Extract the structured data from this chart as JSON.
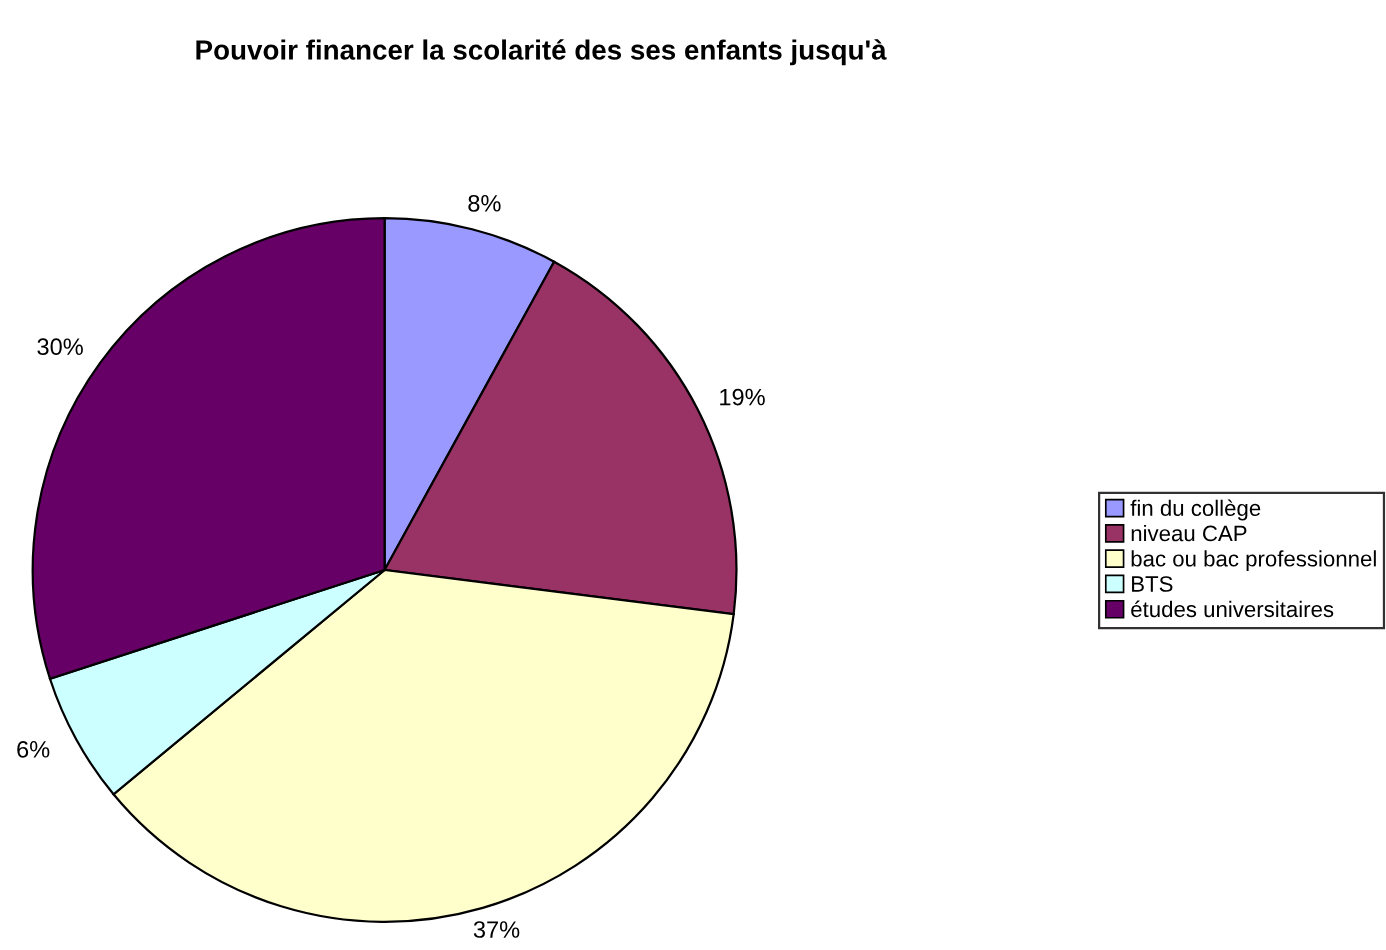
{
  "chart_data": {
    "type": "pie",
    "title": "Pouvoir financer la scolarité des ses enfants jusqu'à",
    "categories": [
      "fin du collège",
      "niveau CAP",
      "bac ou bac professionnel",
      "BTS",
      "études universitaires"
    ],
    "values": [
      8,
      19,
      37,
      6,
      30
    ],
    "value_labels": [
      "8%",
      "19%",
      "37%",
      "6%",
      "30%"
    ],
    "colors": [
      "#9999ff",
      "#993366",
      "#ffffcc",
      "#ccffff",
      "#660066"
    ],
    "legend": "right"
  }
}
